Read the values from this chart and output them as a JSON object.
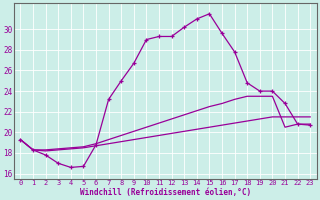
{
  "xlabel": "Windchill (Refroidissement éolien,°C)",
  "background_color": "#cceee8",
  "line_color": "#990099",
  "xlim": [
    -0.5,
    23.5
  ],
  "ylim": [
    15.5,
    32.5
  ],
  "yticks": [
    16,
    18,
    20,
    22,
    24,
    26,
    28,
    30
  ],
  "xticks": [
    0,
    1,
    2,
    3,
    4,
    5,
    6,
    7,
    8,
    9,
    10,
    11,
    12,
    13,
    14,
    15,
    16,
    17,
    18,
    19,
    20,
    21,
    22,
    23
  ],
  "line1_x": [
    0,
    1,
    2,
    3,
    4,
    5,
    6,
    7,
    8,
    9,
    10,
    11,
    12,
    13,
    14,
    15,
    16,
    17,
    18,
    19,
    20,
    21,
    22,
    23
  ],
  "line1_y": [
    19.3,
    18.3,
    17.8,
    17.0,
    16.6,
    16.7,
    18.8,
    23.2,
    25.0,
    26.7,
    29.0,
    29.3,
    29.3,
    30.2,
    31.0,
    31.5,
    29.6,
    27.8,
    24.8,
    24.0,
    24.0,
    22.8,
    20.8,
    20.7
  ],
  "line2_x": [
    0,
    1,
    2,
    3,
    4,
    5,
    6,
    7,
    8,
    9,
    10,
    11,
    12,
    13,
    14,
    15,
    16,
    17,
    18,
    19,
    20,
    21,
    22,
    23
  ],
  "line2_y": [
    19.3,
    18.3,
    18.2,
    18.3,
    18.4,
    18.5,
    18.7,
    18.9,
    19.1,
    19.3,
    19.5,
    19.7,
    19.9,
    20.1,
    20.3,
    20.5,
    20.7,
    20.9,
    21.1,
    21.3,
    21.5,
    21.5,
    21.5,
    21.5
  ],
  "line3_x": [
    0,
    1,
    2,
    3,
    4,
    5,
    6,
    7,
    8,
    9,
    10,
    11,
    12,
    13,
    14,
    15,
    16,
    17,
    18,
    19,
    20,
    21,
    22,
    23
  ],
  "line3_y": [
    19.3,
    18.3,
    18.3,
    18.4,
    18.5,
    18.6,
    18.9,
    19.3,
    19.7,
    20.1,
    20.5,
    20.9,
    21.3,
    21.7,
    22.1,
    22.5,
    22.8,
    23.2,
    23.5,
    23.5,
    23.5,
    20.5,
    20.8,
    20.8
  ]
}
